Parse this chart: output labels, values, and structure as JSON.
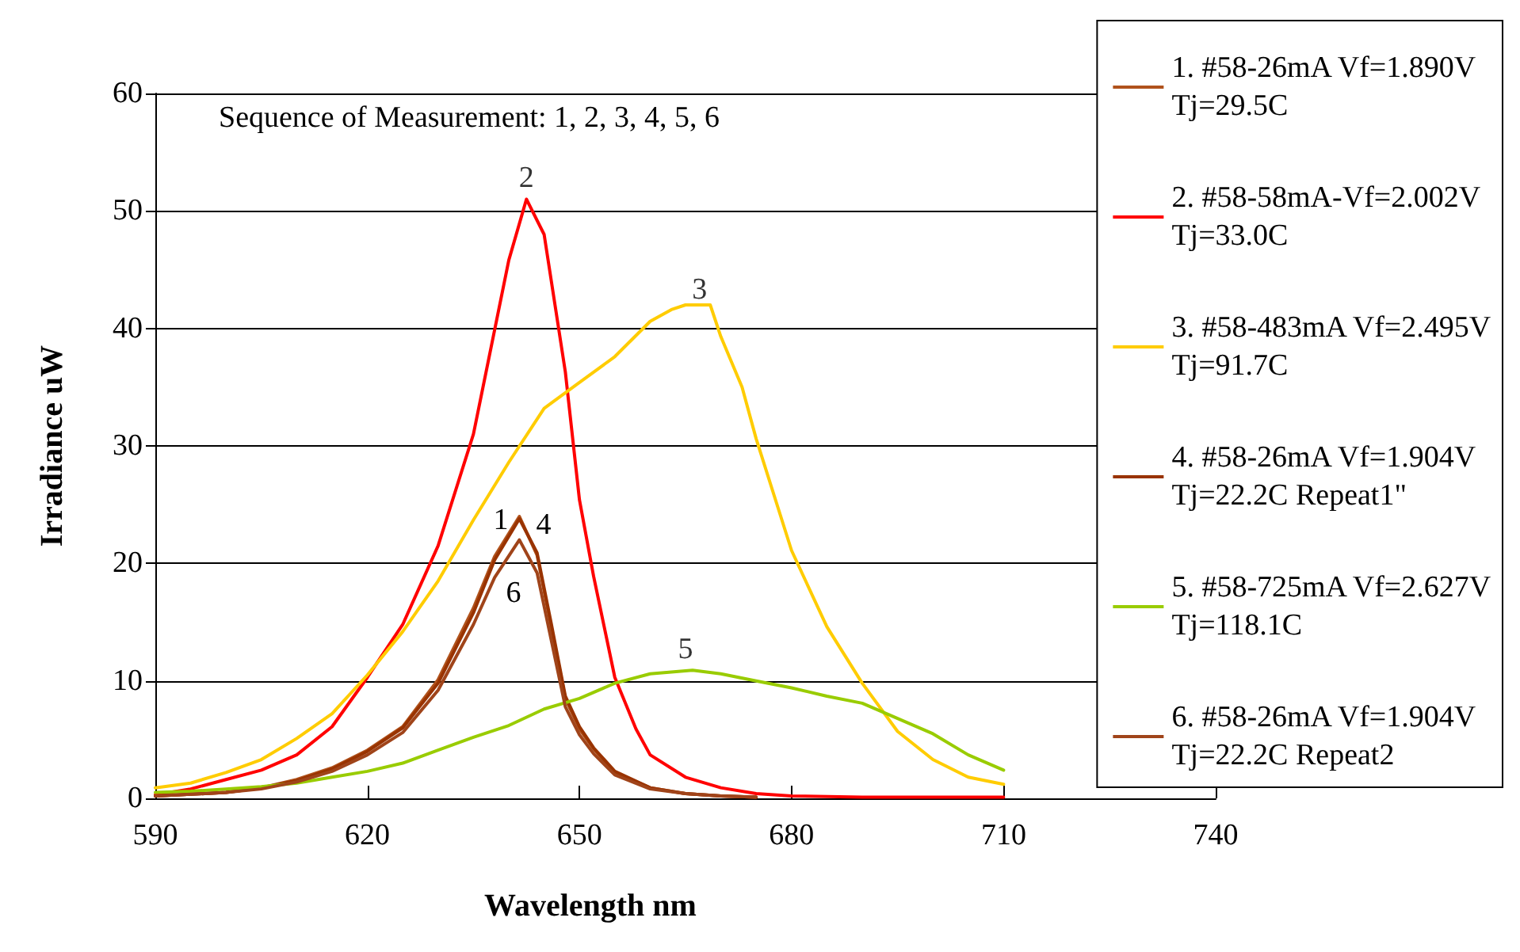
{
  "chart_data": {
    "type": "line",
    "xlabel": "Wavelength nm",
    "ylabel": "Irradiance uW",
    "xlim": [
      590,
      740
    ],
    "xticks": [
      590,
      620,
      650,
      680,
      710,
      740
    ],
    "ylim": [
      0,
      60
    ],
    "yticks": [
      0,
      10,
      20,
      30,
      40,
      50,
      60
    ],
    "grid": "y",
    "legend": "right",
    "marker": "none",
    "line_style": "solid",
    "annotations": [
      "Sequence of Measurement: 1, 2, 3, 4, 5, 6",
      {
        "text": "2",
        "x": 642.5,
        "y": 51.5
      },
      {
        "text": "3",
        "x": 667,
        "y": 42
      },
      {
        "text": "5",
        "x": 665,
        "y": 11.4
      },
      "1",
      "4",
      "6"
    ],
    "series": [
      {
        "name": "1. #58-26mA Vf=1.890V\nTj=29.5C",
        "color": "#b0521c",
        "x": [
          590,
          600,
          605,
          610,
          615,
          620,
          625,
          630,
          635,
          638,
          641.5,
          644,
          646,
          648,
          650,
          652,
          655,
          660,
          665,
          670,
          675
        ],
        "values": [
          0.2,
          0.5,
          0.9,
          1.6,
          2.6,
          4.1,
          6.1,
          10.1,
          16.2,
          20.6,
          24,
          20.7,
          14.6,
          8.5,
          5.9,
          4.2,
          2.2,
          0.9,
          0.4,
          0.2,
          0.1
        ]
      },
      {
        "name": "2. #58-58mA-Vf=2.002V\nTj=33.0C",
        "color": "#ff0000",
        "x": [
          590,
          595,
          600,
          605,
          610,
          615,
          620,
          625,
          630,
          635,
          640,
          642.5,
          645,
          648,
          650,
          652,
          655,
          658,
          660,
          665,
          670,
          675,
          680,
          690,
          700,
          710
        ],
        "values": [
          0.3,
          0.8,
          1.6,
          2.4,
          3.7,
          6.1,
          10.3,
          14.8,
          21.5,
          31,
          45.8,
          51,
          48,
          36.3,
          25.4,
          18.9,
          10.3,
          5.9,
          3.7,
          1.8,
          0.9,
          0.4,
          0.2,
          0.1,
          0.1,
          0.1
        ]
      },
      {
        "name": "3. #58-483mA Vf=2.495V\nTj=91.7C",
        "color": "#ffcc00",
        "x": [
          590,
          595,
          600,
          605,
          610,
          615,
          620,
          625,
          630,
          635,
          640,
          645,
          650,
          655,
          660,
          663,
          665,
          668.5,
          670,
          673,
          675,
          680,
          685,
          690,
          695,
          700,
          705,
          710
        ],
        "values": [
          0.9,
          1.3,
          2.2,
          3.3,
          5.1,
          7.2,
          10.5,
          14.2,
          18.5,
          23.7,
          28.6,
          33.2,
          35.4,
          37.6,
          40.6,
          41.6,
          42,
          42,
          39.3,
          35,
          30.6,
          21.1,
          14.6,
          9.8,
          5.7,
          3.3,
          1.8,
          1.2
        ]
      },
      {
        "name": "4. #58-26mA Vf=1.904V\nTj=22.2C Repeat1\"",
        "color": "#993300",
        "x": [
          590,
          600,
          605,
          610,
          615,
          620,
          625,
          630,
          635,
          638,
          641.5,
          644,
          646,
          648,
          650,
          652,
          655,
          660,
          665,
          670,
          675
        ],
        "values": [
          0.2,
          0.5,
          0.9,
          1.5,
          2.5,
          4,
          6,
          9.8,
          15.8,
          20.3,
          23.8,
          20.9,
          14.9,
          8.7,
          6.1,
          4.3,
          2.3,
          0.9,
          0.4,
          0.2,
          0.1
        ]
      },
      {
        "name": "5. #58-725mA Vf=2.627V\nTj=118.1C",
        "color": "#99cc00",
        "x": [
          590,
          595,
          600,
          605,
          610,
          615,
          620,
          625,
          630,
          635,
          640,
          645,
          650,
          655,
          660,
          666,
          670,
          675,
          680,
          685,
          690,
          695,
          700,
          705,
          710
        ],
        "values": [
          0.5,
          0.6,
          0.8,
          1,
          1.3,
          1.8,
          2.3,
          3,
          4.1,
          5.2,
          6.2,
          7.6,
          8.5,
          9.8,
          10.6,
          10.9,
          10.6,
          10,
          9.4,
          8.7,
          8.1,
          6.8,
          5.5,
          3.7,
          2.4
        ]
      },
      {
        "name": "6. #58-26mA Vf=1.904V\nTj=22.2C Repeat2",
        "color": "#a0441a",
        "x": [
          590,
          600,
          605,
          610,
          615,
          620,
          625,
          630,
          635,
          638,
          641.5,
          644,
          646,
          648,
          650,
          652,
          655,
          660,
          665,
          670,
          675
        ],
        "values": [
          0.2,
          0.5,
          0.8,
          1.4,
          2.3,
          3.7,
          5.6,
          9.2,
          14.8,
          18.8,
          22,
          19.2,
          13.5,
          7.8,
          5.4,
          3.8,
          2,
          0.8,
          0.4,
          0.2,
          0.1
        ]
      }
    ]
  }
}
